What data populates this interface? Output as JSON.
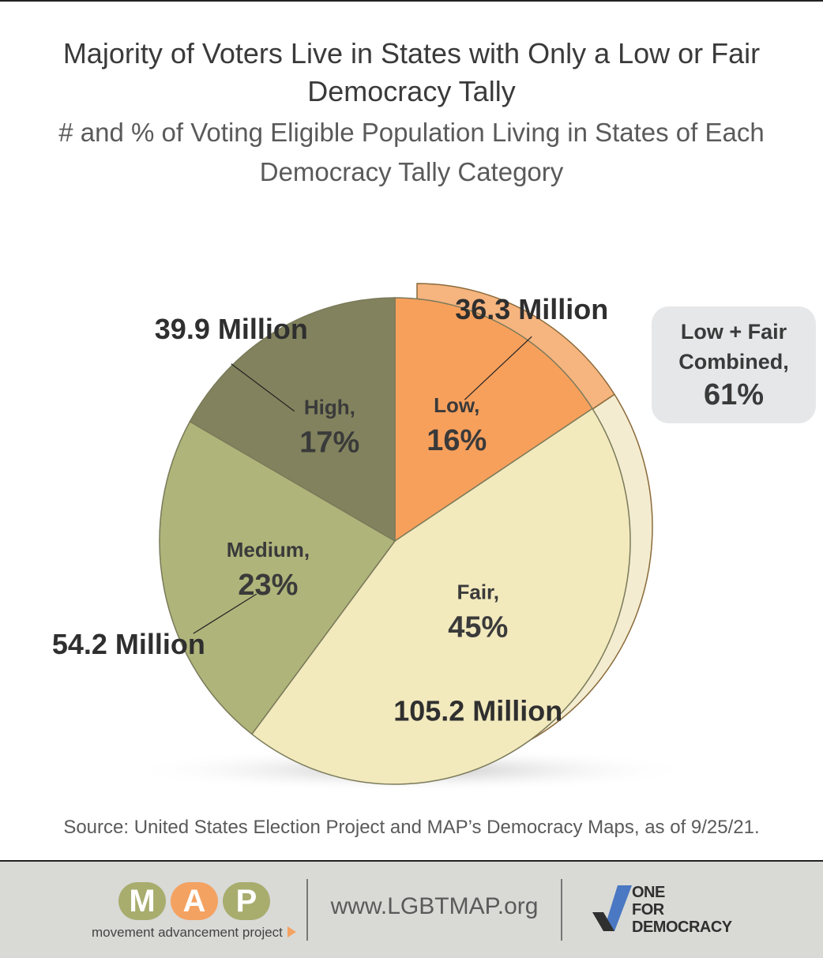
{
  "title": "Majority of Voters Live in States with Only a Low or Fair Democracy Tally",
  "subtitle": "# and % of Voting Eligible Population Living in States of Each Democracy Tally Category",
  "chart_data": {
    "type": "pie",
    "title": "Majority of Voters Live in States with Only a Low or Fair Democracy Tally",
    "subtitle": "# and % of Voting Eligible Population Living in States of Each Democracy Tally Category",
    "slices": [
      {
        "name": "Low",
        "label": "Low,",
        "percent": 16,
        "percent_label": "16%",
        "value_millions": 36.3,
        "value_label": "36.3 Million",
        "color": "#f7a05c"
      },
      {
        "name": "Fair",
        "label": "Fair,",
        "percent": 45,
        "percent_label": "45%",
        "value_millions": 105.2,
        "value_label": "105.2 Million",
        "color": "#f2e9bd"
      },
      {
        "name": "Medium",
        "label": "Medium,",
        "percent": 23,
        "percent_label": "23%",
        "value_millions": 54.2,
        "value_label": "54.2 Million",
        "color": "#afb47a"
      },
      {
        "name": "High",
        "label": "High,",
        "percent": 17,
        "percent_label": "17%",
        "value_millions": 39.9,
        "value_label": "39.9 Million",
        "color": "#82835e"
      }
    ],
    "exploded": [
      "Low",
      "Fair"
    ],
    "annotation": {
      "label": "Low + Fair Combined,",
      "value": "61%"
    }
  },
  "source": "Source: United States Election Project and MAP’s Democracy Maps, as of 9/25/21.",
  "footer": {
    "map_letters": [
      "M",
      "A",
      "P"
    ],
    "map_letter_colors": [
      "#a8ad6e",
      "#f4a261",
      "#a8ad6e"
    ],
    "map_tagline": "movement advancement project",
    "website": "www.LGBTMAP.org",
    "ofd_lines": [
      "ONE",
      "FOR",
      "DEMOCRACY"
    ]
  },
  "colors": {
    "low": "#f7a05c",
    "low_back": "#f6b47f",
    "fair": "#f2e9bd",
    "fair_back": "#f3ecd0",
    "medium": "#afb47a",
    "high": "#82835e",
    "outline": "#7a7a5a"
  }
}
